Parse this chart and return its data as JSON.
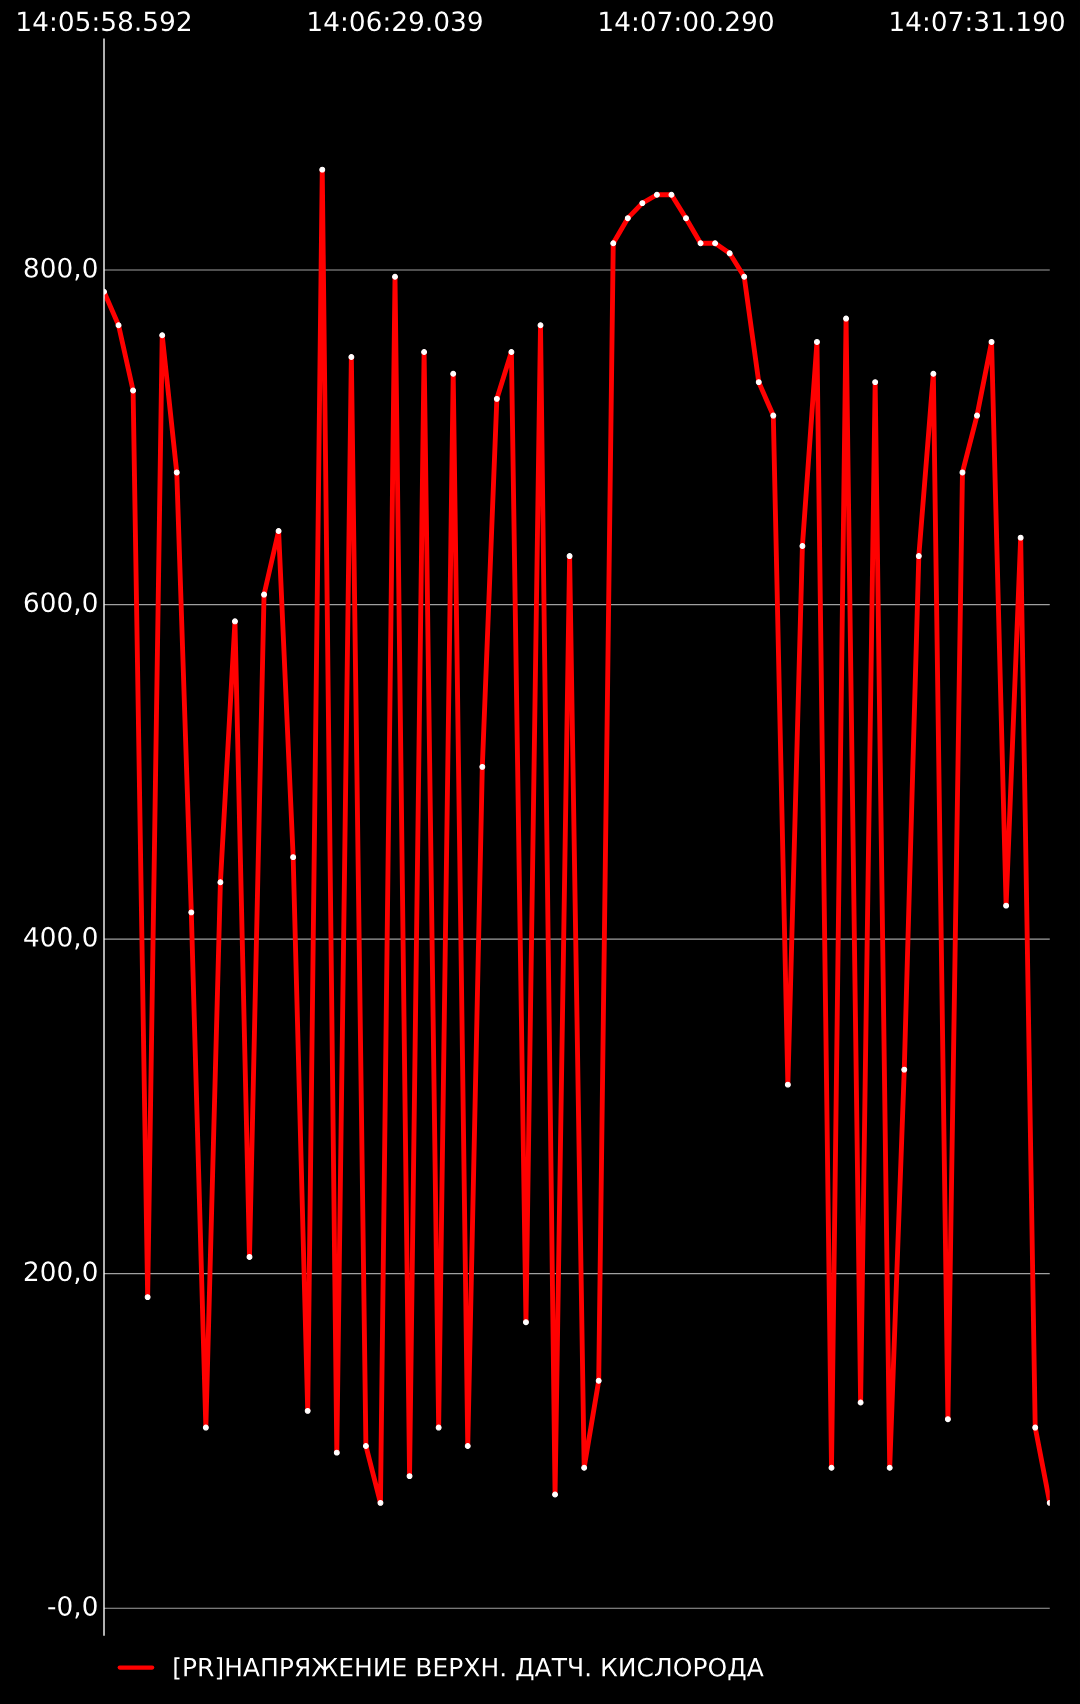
{
  "chart_data": {
    "type": "line",
    "categories": [
      "14:05:58.592",
      null,
      null,
      null,
      null,
      null,
      null,
      null,
      null,
      null,
      null,
      null,
      null,
      null,
      null,
      null,
      null,
      null,
      null,
      null,
      "14:06:29.039",
      null,
      null,
      null,
      null,
      null,
      null,
      null,
      null,
      null,
      null,
      null,
      null,
      null,
      null,
      null,
      null,
      null,
      null,
      null,
      "14:07:00.290",
      null,
      null,
      null,
      null,
      null,
      null,
      null,
      null,
      null,
      null,
      null,
      null,
      null,
      null,
      null,
      null,
      null,
      null,
      null,
      "14:07:31.190",
      null,
      null,
      null,
      null,
      null
    ],
    "series": [
      {
        "name": "[PR]НАПРЯЖЕНИЕ ВЕРХН. ДАТЧ. КИСЛОРОДА",
        "color": "#ff0000",
        "values": [
          787,
          767,
          728,
          186,
          761,
          679,
          416,
          108,
          434,
          590,
          210,
          606,
          644,
          449,
          118,
          860,
          93,
          748,
          97,
          63,
          796,
          79,
          751,
          108,
          738,
          97,
          503,
          723,
          751,
          171,
          767,
          68,
          629,
          84,
          136,
          816,
          831,
          840,
          845,
          845,
          831,
          816,
          816,
          810,
          796,
          733,
          713,
          313,
          635,
          757,
          84,
          771,
          123,
          733,
          84,
          322,
          629,
          738,
          113,
          679,
          713,
          757,
          420,
          640,
          108,
          63
        ]
      }
    ],
    "ylim": [
      -16,
      938
    ],
    "yticks": [
      {
        "value": 0,
        "label": "-0,0"
      },
      {
        "value": 200,
        "label": "200,0"
      },
      {
        "value": 400,
        "label": "400,0"
      },
      {
        "value": 600,
        "label": "600,0"
      },
      {
        "value": 800,
        "label": "800,0"
      }
    ],
    "grid": "y",
    "legend": "bottom",
    "marker": "circle",
    "line_style": "solid"
  }
}
